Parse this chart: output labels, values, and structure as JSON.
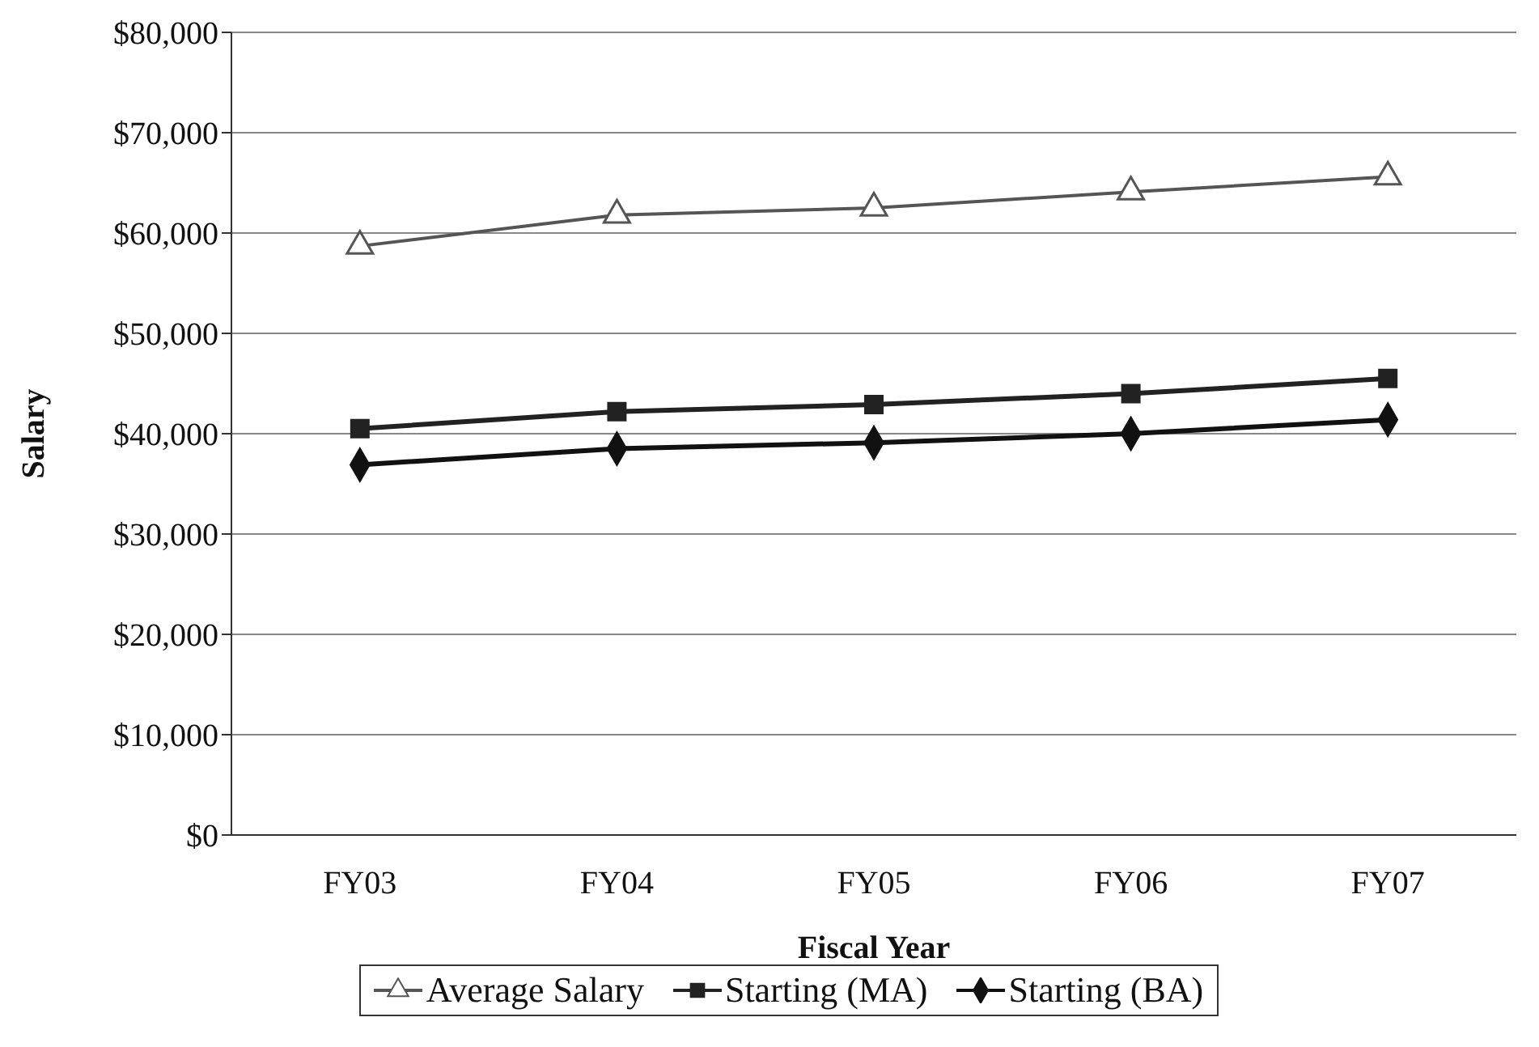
{
  "chart_data": {
    "type": "line",
    "xlabel": "Fiscal Year",
    "ylabel": "Salary",
    "categories": [
      "FY03",
      "FY04",
      "FY05",
      "FY06",
      "FY07"
    ],
    "series": [
      {
        "name": "Average Salary",
        "color": "#555555",
        "marker": "triangle",
        "values": [
          58700,
          61800,
          62500,
          64100,
          65600
        ]
      },
      {
        "name": "Starting (MA)",
        "color": "#222222",
        "marker": "square",
        "values": [
          40500,
          42200,
          42900,
          44000,
          45500
        ]
      },
      {
        "name": "Starting (BA)",
        "color": "#111111",
        "marker": "diamond",
        "values": [
          36900,
          38500,
          39100,
          40000,
          41400
        ]
      }
    ],
    "ylim": [
      0,
      80000
    ],
    "yticks": [
      {
        "value": 0,
        "label": "$0"
      },
      {
        "value": 10000,
        "label": "$10,000"
      },
      {
        "value": 20000,
        "label": "$20,000"
      },
      {
        "value": 30000,
        "label": "$30,000"
      },
      {
        "value": 40000,
        "label": "$40,000"
      },
      {
        "value": 50000,
        "label": "$50,000"
      },
      {
        "value": 60000,
        "label": "$60,000"
      },
      {
        "value": 70000,
        "label": "$70,000"
      },
      {
        "value": 80000,
        "label": "$80,000"
      }
    ],
    "grid": "y",
    "legend": "bottom",
    "line_style": "solid"
  }
}
